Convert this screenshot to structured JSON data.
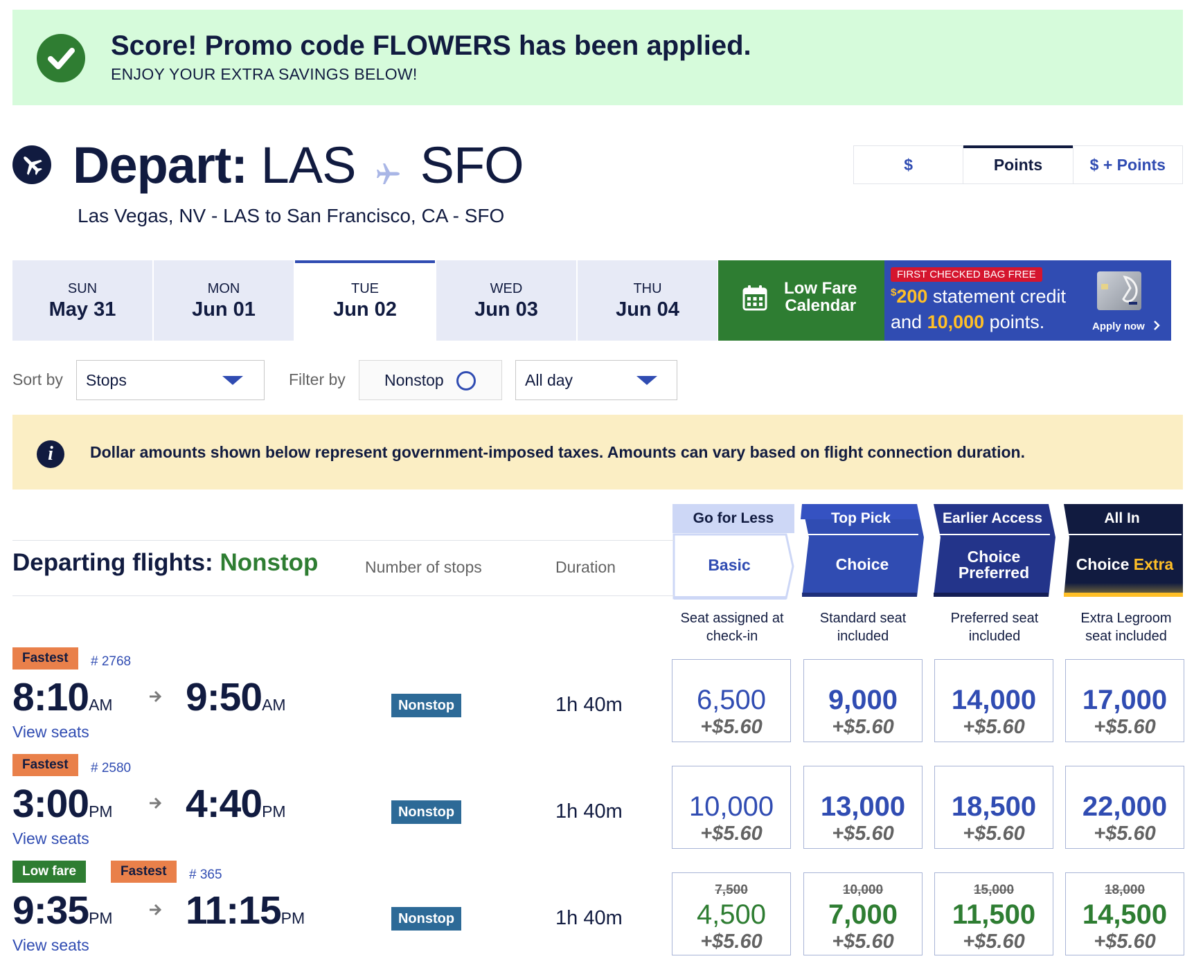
{
  "promo": {
    "title": "Score! Promo code FLOWERS has been applied.",
    "subtitle": "ENJOY YOUR EXTRA SAVINGS BELOW!"
  },
  "header": {
    "depart_label": "Depart:",
    "origin": "LAS",
    "destination": "SFO",
    "route_text": "Las Vegas, NV - LAS to San Francisco, CA - SFO"
  },
  "currency_toggle": {
    "options": [
      "$",
      "Points",
      "$ + Points"
    ],
    "selected": "Points"
  },
  "date_tabs": [
    {
      "dow": "SUN",
      "date": "May 31"
    },
    {
      "dow": "MON",
      "date": "Jun 01"
    },
    {
      "dow": "TUE",
      "date": "Jun 02",
      "selected": true
    },
    {
      "dow": "WED",
      "date": "Jun 03"
    },
    {
      "dow": "THU",
      "date": "Jun 04"
    }
  ],
  "low_fare": {
    "line1": "Low Fare",
    "line2": "Calendar"
  },
  "card_ad": {
    "badge": "FIRST CHECKED BAG FREE",
    "amount_currency": "$",
    "amount": "200",
    "line1_rest": " statement credit",
    "line2_pre": "and ",
    "points": "10,000",
    "line2_post": " points.",
    "apply": "Apply now"
  },
  "sort": {
    "label": "Sort by",
    "value": "Stops"
  },
  "filter": {
    "label": "Filter by",
    "nonstop": "Nonstop",
    "time": "All day"
  },
  "info": {
    "text": "Dollar amounts shown below represent government-imposed taxes. Amounts can vary based on flight connection duration."
  },
  "list": {
    "title": "Departing flights:",
    "title_highlight": "Nonstop",
    "col_stops": "Number of stops",
    "col_duration": "Duration"
  },
  "fares": [
    {
      "tagline": "Go for Less",
      "name": "Basic",
      "desc1": "Seat assigned at",
      "desc2": "check-in"
    },
    {
      "tagline": "Top Pick",
      "name": "Choice",
      "desc1": "Standard seat",
      "desc2": "included"
    },
    {
      "tagline": "Earlier Access",
      "name1": "Choice",
      "name2": "Preferred",
      "desc1": "Preferred seat",
      "desc2": "included"
    },
    {
      "tagline": "All In",
      "name1": "Choice",
      "name2": "Extra",
      "desc1": "Extra Legroom",
      "desc2": "seat included"
    }
  ],
  "flights": [
    {
      "tags": [
        "Fastest"
      ],
      "flight_no": "# 2768",
      "dep": "8:10",
      "dep_ampm": "AM",
      "arr": "9:50",
      "arr_ampm": "AM",
      "view_seats": "View seats",
      "stops": "Nonstop",
      "duration": "1h 40m",
      "prices": [
        {
          "points": "6,500",
          "tax": "+$5.60"
        },
        {
          "points": "9,000",
          "tax": "+$5.60"
        },
        {
          "points": "14,000",
          "tax": "+$5.60"
        },
        {
          "points": "17,000",
          "tax": "+$5.60"
        }
      ]
    },
    {
      "tags": [
        "Fastest"
      ],
      "flight_no": "# 2580",
      "dep": "3:00",
      "dep_ampm": "PM",
      "arr": "4:40",
      "arr_ampm": "PM",
      "view_seats": "View seats",
      "stops": "Nonstop",
      "duration": "1h 40m",
      "prices": [
        {
          "points": "10,000",
          "tax": "+$5.60"
        },
        {
          "points": "13,000",
          "tax": "+$5.60"
        },
        {
          "points": "18,500",
          "tax": "+$5.60"
        },
        {
          "points": "22,000",
          "tax": "+$5.60"
        }
      ]
    },
    {
      "tags": [
        "Low fare",
        "Fastest"
      ],
      "flight_no": "# 365",
      "dep": "9:35",
      "dep_ampm": "PM",
      "arr": "11:15",
      "arr_ampm": "PM",
      "view_seats": "View seats",
      "stops": "Nonstop",
      "duration": "1h 40m",
      "prices": [
        {
          "old": "7,500",
          "points": "4,500",
          "tax": "+$5.60"
        },
        {
          "old": "10,000",
          "points": "7,000",
          "tax": "+$5.60"
        },
        {
          "old": "15,000",
          "points": "11,500",
          "tax": "+$5.60"
        },
        {
          "old": "18,000",
          "points": "14,500",
          "tax": "+$5.60"
        }
      ]
    }
  ],
  "colors": {
    "navy": "#111b40",
    "blue": "#304cb2",
    "green": "#2e7d32",
    "orange": "#e9804a",
    "gold": "#ffbf27",
    "promo_bg": "#d6fbdb",
    "info_bg": "#fbeec4"
  },
  "icons": [
    "check-icon",
    "airplane-icon",
    "calendar-icon",
    "info-icon",
    "chevron-down-icon",
    "chevron-right-icon",
    "arrow-right-icon",
    "radio-ring-icon"
  ]
}
